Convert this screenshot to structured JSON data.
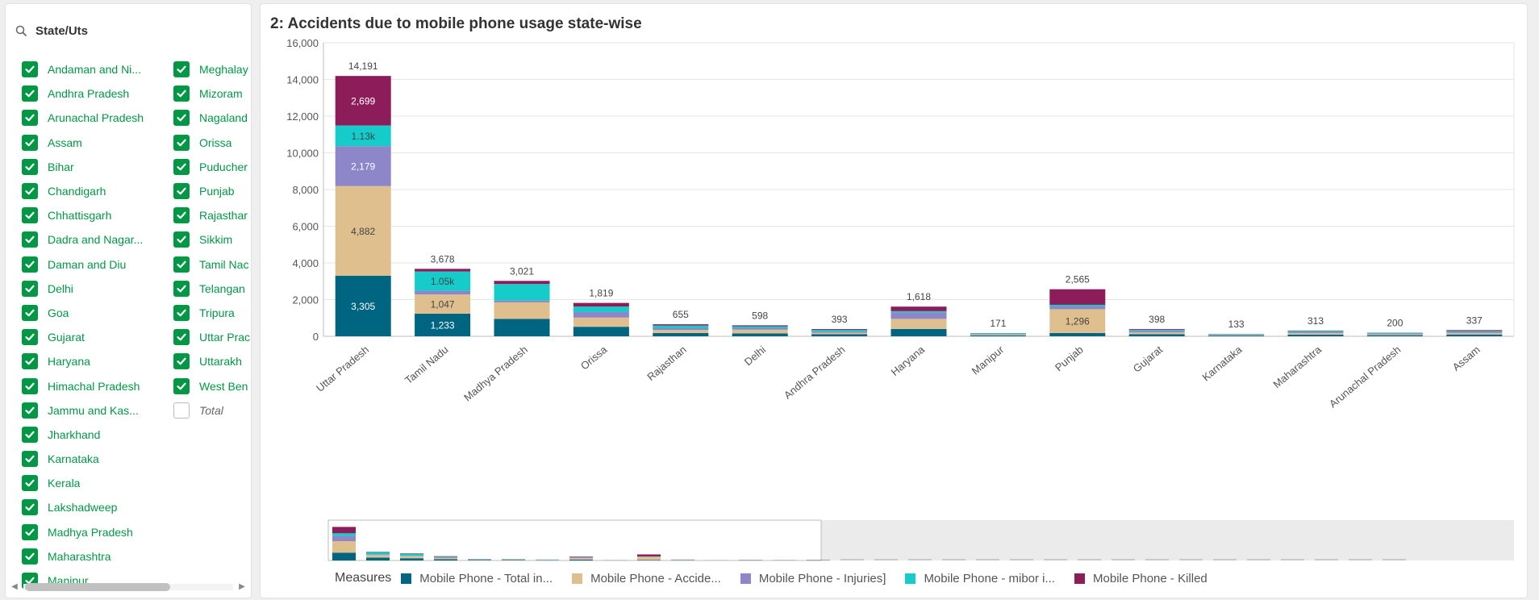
{
  "filter": {
    "title": "State/Uts",
    "column1": [
      {
        "label": "Andaman and Ni...",
        "checked": true
      },
      {
        "label": "Andhra Pradesh",
        "checked": true
      },
      {
        "label": "Arunachal Pradesh",
        "checked": true
      },
      {
        "label": "Assam",
        "checked": true
      },
      {
        "label": "Bihar",
        "checked": true
      },
      {
        "label": "Chandigarh",
        "checked": true
      },
      {
        "label": "Chhattisgarh",
        "checked": true
      },
      {
        "label": "Dadra and Nagar...",
        "checked": true
      },
      {
        "label": "Daman and Diu",
        "checked": true
      },
      {
        "label": "Delhi",
        "checked": true
      },
      {
        "label": "Goa",
        "checked": true
      },
      {
        "label": "Gujarat",
        "checked": true
      },
      {
        "label": "Haryana",
        "checked": true
      },
      {
        "label": "Himachal Pradesh",
        "checked": true
      },
      {
        "label": "Jammu and Kas...",
        "checked": true
      },
      {
        "label": "Jharkhand",
        "checked": true
      },
      {
        "label": "Karnataka",
        "checked": true
      },
      {
        "label": "Kerala",
        "checked": true
      },
      {
        "label": "Lakshadweep",
        "checked": true
      },
      {
        "label": "Madhya Pradesh",
        "checked": true
      },
      {
        "label": "Maharashtra",
        "checked": true
      },
      {
        "label": "Manipur",
        "checked": true
      }
    ],
    "column2": [
      {
        "label": "Meghalay",
        "checked": true
      },
      {
        "label": "Mizoram",
        "checked": true
      },
      {
        "label": "Nagaland",
        "checked": true
      },
      {
        "label": "Orissa",
        "checked": true
      },
      {
        "label": "Puducher",
        "checked": true
      },
      {
        "label": "Punjab",
        "checked": true
      },
      {
        "label": "Rajasthar",
        "checked": true
      },
      {
        "label": "Sikkim",
        "checked": true
      },
      {
        "label": "Tamil Nac",
        "checked": true
      },
      {
        "label": "Telangan",
        "checked": true
      },
      {
        "label": "Tripura",
        "checked": true
      },
      {
        "label": "Uttar Prac",
        "checked": true
      },
      {
        "label": "Uttarakh",
        "checked": true
      },
      {
        "label": "West Ben",
        "checked": true
      },
      {
        "label": "Total",
        "checked": false
      }
    ]
  },
  "chart_title": "2: Accidents due to mobile phone usage state-wise",
  "colors": {
    "accent_green": "#009845",
    "series": [
      "#006580",
      "#e0bf8f",
      "#8d87c9",
      "#16cccb",
      "#8c1d5a"
    ]
  },
  "legend": {
    "title": "Measures",
    "items": [
      "Mobile Phone - Total in...",
      "Mobile Phone - Accide...",
      "Mobile Phone - Injuries]",
      "Mobile Phone - mibor i...",
      "Mobile Phone - Killed"
    ]
  },
  "chart_data": {
    "type": "bar",
    "stacked": true,
    "categories": [
      "Uttar Pradesh",
      "Tamil Nadu",
      "Madhya Pradesh",
      "Orissa",
      "Rajasthan",
      "Delhi",
      "Andhra Pradesh",
      "Haryana",
      "Manipur",
      "Punjab",
      "Gujarat",
      "Karnataka",
      "Maharashtra",
      "Arunachal Pradesh",
      "Assam"
    ],
    "series": [
      {
        "values": [
          3305,
          1233,
          950,
          520,
          180,
          160,
          110,
          400,
          50,
          180,
          110,
          40,
          90,
          60,
          100
        ]
      },
      {
        "values": [
          4882,
          1047,
          900,
          500,
          160,
          200,
          80,
          550,
          40,
          1296,
          100,
          30,
          80,
          50,
          80
        ]
      },
      {
        "values": [
          2179,
          200,
          100,
          300,
          100,
          80,
          70,
          350,
          30,
          150,
          90,
          25,
          60,
          40,
          60
        ]
      },
      {
        "values": [
          1126,
          1050,
          900,
          299,
          150,
          100,
          90,
          70,
          40,
          90,
          60,
          30,
          60,
          40,
          50
        ]
      },
      {
        "values": [
          2699,
          148,
          171,
          200,
          65,
          58,
          43,
          248,
          11,
          849,
          38,
          8,
          23,
          10,
          47
        ]
      }
    ],
    "totals": [
      "14,191",
      "3,678",
      "3,021",
      "1,819",
      "655",
      "598",
      "393",
      "1,618",
      "171",
      "2,565",
      "398",
      "133",
      "313",
      "200",
      "337"
    ],
    "segment_labels": [
      [
        "3,305",
        "4,882",
        "2,179",
        "1.13k",
        "2,699"
      ],
      [
        "1,233",
        "1,047",
        "",
        "1.05k",
        ""
      ],
      [
        "",
        "",
        "",
        "",
        ""
      ],
      [
        "",
        "",
        "",
        "",
        ""
      ],
      [
        "",
        "",
        "",
        "",
        ""
      ],
      [
        "",
        "",
        "",
        "",
        ""
      ],
      [
        "",
        "",
        "",
        "",
        ""
      ],
      [
        "",
        "",
        "",
        "",
        ""
      ],
      [
        "",
        "",
        "",
        "",
        ""
      ],
      [
        "",
        "1,296",
        "",
        "",
        ""
      ],
      [
        "",
        "",
        "",
        "",
        ""
      ],
      [
        "",
        "",
        "",
        "",
        ""
      ],
      [
        "",
        "",
        "",
        "",
        ""
      ],
      [
        "",
        "",
        "",
        "",
        ""
      ],
      [
        "",
        "",
        "",
        "",
        ""
      ]
    ],
    "y_ticks": [
      "0",
      "2,000",
      "4,000",
      "6,000",
      "8,000",
      "10,000",
      "12,000",
      "14,000",
      "16,000"
    ],
    "ylim": [
      0,
      16000
    ],
    "grid": true,
    "legend_position": "bottom"
  }
}
